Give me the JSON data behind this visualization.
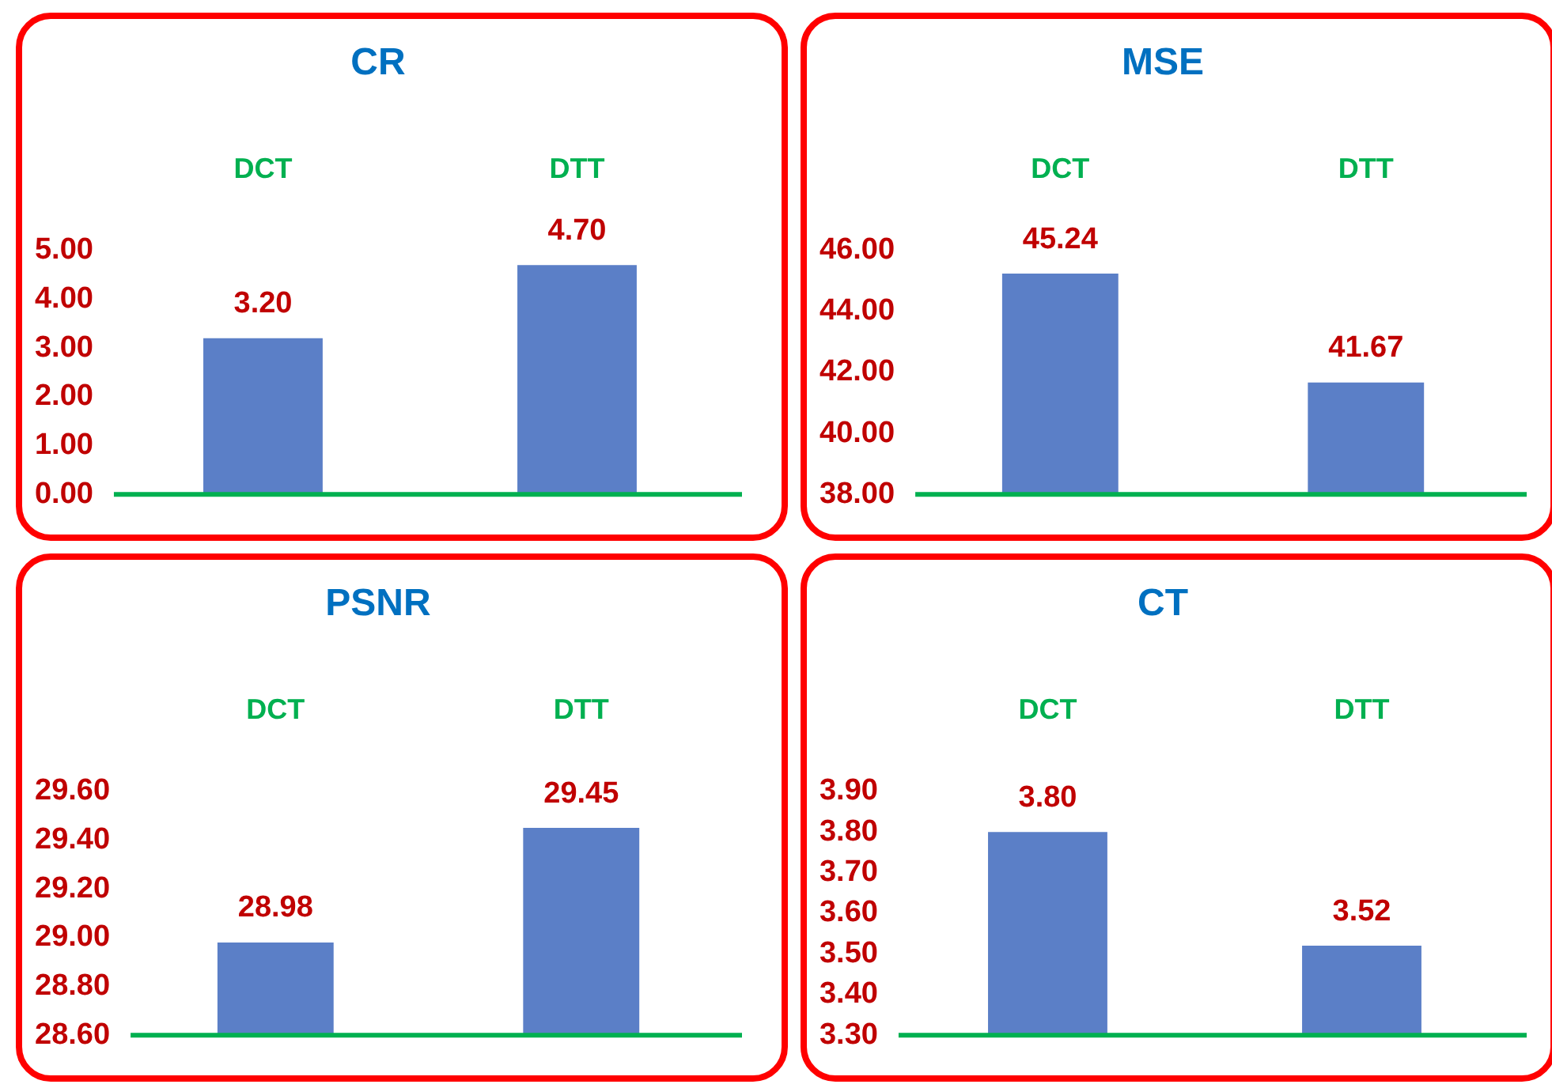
{
  "chart_data": [
    {
      "type": "bar",
      "title": "CR",
      "categories": [
        "DCT",
        "DTT"
      ],
      "values": [
        3.2,
        4.7
      ],
      "color": "#5b7fc7",
      "ylim": [
        0,
        5
      ],
      "yticks": [
        {
          "value": 0,
          "label": "0.00"
        },
        {
          "value": 1,
          "label": "1.00"
        },
        {
          "value": 2,
          "label": "2.00"
        },
        {
          "value": 3,
          "label": "3.00"
        },
        {
          "value": 4,
          "label": "4.00"
        },
        {
          "value": 5,
          "label": "5.00"
        }
      ],
      "value_labels": [
        "3.20",
        "4.70"
      ],
      "grid": false,
      "legend": false
    },
    {
      "type": "bar",
      "title": "MSE",
      "categories": [
        "DCT",
        "DTT"
      ],
      "values": [
        45.24,
        41.67
      ],
      "color": "#5b7fc7",
      "ylim": [
        38,
        46
      ],
      "yticks": [
        {
          "value": 38,
          "label": "38.00"
        },
        {
          "value": 40,
          "label": "40.00"
        },
        {
          "value": 42,
          "label": "42.00"
        },
        {
          "value": 44,
          "label": "44.00"
        },
        {
          "value": 46,
          "label": "46.00"
        }
      ],
      "value_labels": [
        "45.24",
        "41.67"
      ],
      "grid": false,
      "legend": false
    },
    {
      "type": "bar",
      "title": "PSNR",
      "categories": [
        "DCT",
        "DTT"
      ],
      "values": [
        28.98,
        29.45
      ],
      "color": "#5b7fc7",
      "ylim": [
        28.6,
        29.6
      ],
      "yticks": [
        {
          "value": 28.6,
          "label": "28.60"
        },
        {
          "value": 28.8,
          "label": "28.80"
        },
        {
          "value": 29,
          "label": "29.00"
        },
        {
          "value": 29.2,
          "label": "29.20"
        },
        {
          "value": 29.4,
          "label": "29.40"
        },
        {
          "value": 29.6,
          "label": "29.60"
        }
      ],
      "value_labels": [
        "28.98",
        "29.45"
      ],
      "grid": false,
      "legend": false
    },
    {
      "type": "bar",
      "title": "CT",
      "categories": [
        "DCT",
        "DTT"
      ],
      "values": [
        3.8,
        3.52
      ],
      "color": "#5b7fc7",
      "ylim": [
        3.3,
        3.9
      ],
      "yticks": [
        {
          "value": 3.3,
          "label": "3.30"
        },
        {
          "value": 3.4,
          "label": "3.40"
        },
        {
          "value": 3.5,
          "label": "3.50"
        },
        {
          "value": 3.6,
          "label": "3.60"
        },
        {
          "value": 3.7,
          "label": "3.70"
        },
        {
          "value": 3.8,
          "label": "3.80"
        },
        {
          "value": 3.9,
          "label": "3.90"
        }
      ],
      "value_labels": [
        "3.80",
        "3.52"
      ],
      "grid": false,
      "legend": false
    }
  ]
}
